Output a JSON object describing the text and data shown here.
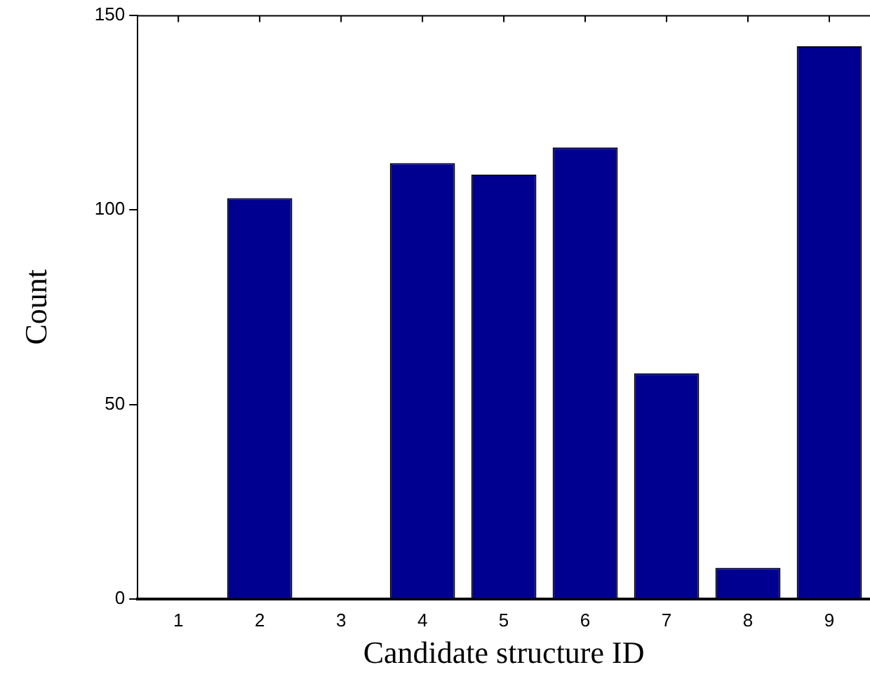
{
  "chart_data": {
    "type": "bar",
    "xlabel": "Candidate structure ID",
    "ylabel": "Count",
    "categories": [
      "1",
      "2",
      "3",
      "4",
      "5",
      "6",
      "7",
      "8",
      "9"
    ],
    "values": [
      0,
      103,
      0,
      112,
      109,
      116,
      58,
      8,
      142
    ],
    "color": "#000090",
    "ylim": [
      0,
      150
    ],
    "yticks": [
      0,
      50,
      100,
      150
    ],
    "grid": false,
    "legend": false
  }
}
